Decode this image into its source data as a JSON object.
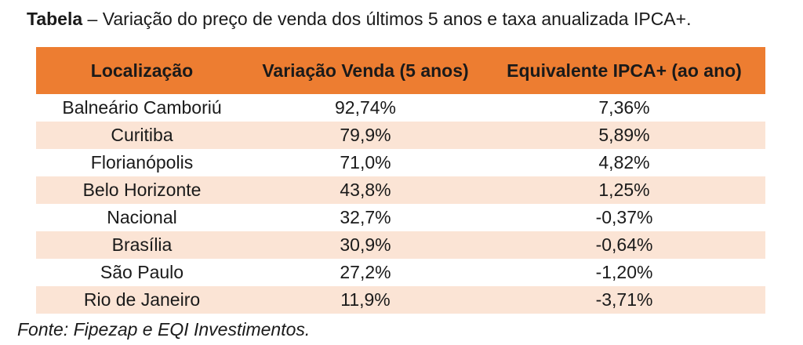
{
  "caption": {
    "label": "Tabela",
    "text": " – Variação do preço de venda dos últimos 5 anos e taxa anualizada IPCA+."
  },
  "table": {
    "headers": [
      "Localização",
      "Variação Venda (5 anos)",
      "Equivalente IPCA+ (ao ano)"
    ],
    "rows": [
      [
        "Balneário Camboriú",
        "92,74%",
        "7,36%"
      ],
      [
        "Curitiba",
        "79,9%",
        "5,89%"
      ],
      [
        "Florianópolis",
        "71,0%",
        "4,82%"
      ],
      [
        "Belo Horizonte",
        "43,8%",
        "1,25%"
      ],
      [
        "Nacional",
        "32,7%",
        "-0,37%"
      ],
      [
        "Brasília",
        "30,9%",
        "-0,64%"
      ],
      [
        "São Paulo",
        "27,2%",
        "-1,20%"
      ],
      [
        "Rio de Janeiro",
        "11,9%",
        "-3,71%"
      ]
    ]
  },
  "source": "Fonte: Fipezap e EQI Investimentos.",
  "colors": {
    "header_bg": "#ed7d31",
    "stripe_bg": "#fbe4d5"
  }
}
